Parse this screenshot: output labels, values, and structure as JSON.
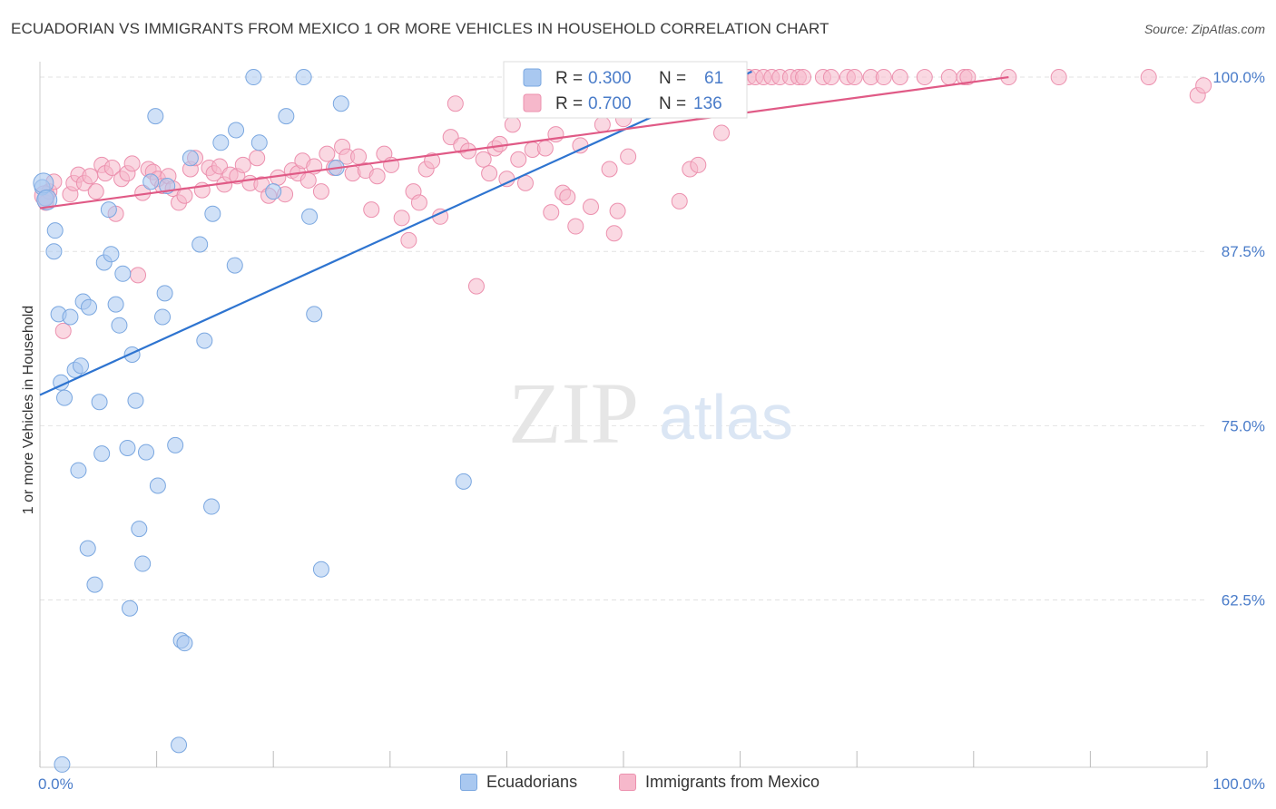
{
  "title": "ECUADORIAN VS IMMIGRANTS FROM MEXICO 1 OR MORE VEHICLES IN HOUSEHOLD CORRELATION CHART",
  "source": "Source: ZipAtlas.com",
  "watermark": {
    "zip": "ZIP",
    "atlas": "atlas"
  },
  "colors": {
    "blue_fill": "#a9c8f0",
    "blue_stroke": "#7aa7e0",
    "blue_line": "#2e74d0",
    "pink_fill": "#f6b8cb",
    "pink_stroke": "#ec90ae",
    "pink_line": "#e05a86",
    "tick_label": "#4a7cc9",
    "grid": "#e2e2e2"
  },
  "chart_data": {
    "type": "scatter",
    "xlabel": "",
    "ylabel": "1 or more Vehicles in Household",
    "xlim": [
      0,
      100
    ],
    "ylim": [
      50.5,
      101.5
    ],
    "x_tick_labels": {
      "left": "0.0%",
      "right": "100.0%"
    },
    "y_ticks": [
      {
        "value": 100.0,
        "label": "100.0%"
      },
      {
        "value": 87.5,
        "label": "87.5%"
      },
      {
        "value": 75.0,
        "label": "75.0%"
      },
      {
        "value": 62.5,
        "label": "62.5%"
      }
    ],
    "legend_stats": [
      {
        "r_label": "R =",
        "r_value": "0.300",
        "n_label": "N =",
        "n_value": "61"
      },
      {
        "r_label": "R =",
        "r_value": "0.700",
        "n_label": "N =",
        "n_value": "136"
      }
    ],
    "series": [
      {
        "name": "Ecuadorians",
        "trend": [
          [
            0,
            77.2
          ],
          [
            61,
            100.4
          ]
        ],
        "points": [
          [
            0.2,
            92.1
          ],
          [
            0.5,
            91.3
          ],
          [
            1.2,
            87.5
          ],
          [
            1.3,
            89.0
          ],
          [
            1.6,
            83.0
          ],
          [
            1.8,
            78.1
          ],
          [
            2.1,
            77.0
          ],
          [
            2.6,
            82.8
          ],
          [
            3.0,
            79.0
          ],
          [
            3.3,
            71.8
          ],
          [
            3.5,
            79.3
          ],
          [
            3.7,
            83.9
          ],
          [
            4.1,
            66.2
          ],
          [
            4.2,
            83.5
          ],
          [
            4.7,
            63.6
          ],
          [
            5.1,
            76.7
          ],
          [
            5.3,
            73.0
          ],
          [
            5.5,
            86.7
          ],
          [
            5.9,
            90.5
          ],
          [
            6.1,
            87.3
          ],
          [
            6.5,
            83.7
          ],
          [
            6.8,
            82.2
          ],
          [
            7.1,
            85.9
          ],
          [
            7.5,
            73.4
          ],
          [
            7.7,
            61.9
          ],
          [
            7.9,
            80.1
          ],
          [
            8.2,
            76.8
          ],
          [
            8.5,
            67.6
          ],
          [
            8.8,
            65.1
          ],
          [
            9.1,
            73.1
          ],
          [
            9.5,
            92.5
          ],
          [
            9.9,
            97.2
          ],
          [
            10.1,
            70.7
          ],
          [
            10.5,
            82.8
          ],
          [
            10.7,
            84.5
          ],
          [
            10.9,
            92.2
          ],
          [
            11.6,
            73.6
          ],
          [
            11.9,
            52.1
          ],
          [
            12.1,
            59.6
          ],
          [
            12.4,
            59.4
          ],
          [
            12.9,
            94.2
          ],
          [
            13.7,
            88.0
          ],
          [
            14.1,
            81.1
          ],
          [
            14.7,
            69.2
          ],
          [
            14.8,
            90.2
          ],
          [
            15.5,
            95.3
          ],
          [
            16.7,
            86.5
          ],
          [
            16.8,
            96.2
          ],
          [
            18.3,
            100.0
          ],
          [
            18.8,
            95.3
          ],
          [
            20.0,
            91.8
          ],
          [
            21.1,
            97.2
          ],
          [
            22.6,
            100.0
          ],
          [
            23.1,
            90.0
          ],
          [
            23.5,
            83.0
          ],
          [
            24.1,
            64.7
          ],
          [
            25.4,
            93.5
          ],
          [
            25.8,
            98.1
          ],
          [
            36.3,
            71.0
          ],
          [
            1.9,
            50.7
          ]
        ],
        "big_points": [
          [
            0.3,
            92.4
          ],
          [
            0.6,
            91.2
          ]
        ]
      },
      {
        "name": "Immigrants from Mexico",
        "trend": [
          [
            0,
            90.6
          ],
          [
            83,
            100.0
          ]
        ],
        "points": [
          [
            0.5,
            91.0
          ],
          [
            0.8,
            91.8
          ],
          [
            1.2,
            92.5
          ],
          [
            2.0,
            81.8
          ],
          [
            2.6,
            91.6
          ],
          [
            2.9,
            92.4
          ],
          [
            3.3,
            93.0
          ],
          [
            3.8,
            92.4
          ],
          [
            4.3,
            92.9
          ],
          [
            4.8,
            91.8
          ],
          [
            5.3,
            93.7
          ],
          [
            5.6,
            93.1
          ],
          [
            6.2,
            93.5
          ],
          [
            6.5,
            90.2
          ],
          [
            7.0,
            92.7
          ],
          [
            7.5,
            93.1
          ],
          [
            7.9,
            93.8
          ],
          [
            8.4,
            85.8
          ],
          [
            8.8,
            91.7
          ],
          [
            9.3,
            93.4
          ],
          [
            9.7,
            93.2
          ],
          [
            10.1,
            92.7
          ],
          [
            10.5,
            92.2
          ],
          [
            11.0,
            92.9
          ],
          [
            11.4,
            92.0
          ],
          [
            11.9,
            91.0
          ],
          [
            12.4,
            91.5
          ],
          [
            12.9,
            93.4
          ],
          [
            13.3,
            94.2
          ],
          [
            13.9,
            91.9
          ],
          [
            14.5,
            93.5
          ],
          [
            14.9,
            93.1
          ],
          [
            15.4,
            93.6
          ],
          [
            15.8,
            92.3
          ],
          [
            16.3,
            93.0
          ],
          [
            16.9,
            92.9
          ],
          [
            17.4,
            93.7
          ],
          [
            18.0,
            92.4
          ],
          [
            18.6,
            94.2
          ],
          [
            19.0,
            92.3
          ],
          [
            19.6,
            91.5
          ],
          [
            20.4,
            92.8
          ],
          [
            21.0,
            91.6
          ],
          [
            21.6,
            93.3
          ],
          [
            22.1,
            93.1
          ],
          [
            22.5,
            94.0
          ],
          [
            23.0,
            92.6
          ],
          [
            23.5,
            93.6
          ],
          [
            24.1,
            91.8
          ],
          [
            24.6,
            94.5
          ],
          [
            25.2,
            93.5
          ],
          [
            25.9,
            95.0
          ],
          [
            26.3,
            94.3
          ],
          [
            26.8,
            93.1
          ],
          [
            27.3,
            94.3
          ],
          [
            27.9,
            93.3
          ],
          [
            28.4,
            90.5
          ],
          [
            28.9,
            92.9
          ],
          [
            29.5,
            94.5
          ],
          [
            30.1,
            93.7
          ],
          [
            31.0,
            89.9
          ],
          [
            31.6,
            88.3
          ],
          [
            32.0,
            91.8
          ],
          [
            32.5,
            91.0
          ],
          [
            33.1,
            93.4
          ],
          [
            33.6,
            94.0
          ],
          [
            34.3,
            90.0
          ],
          [
            35.2,
            95.7
          ],
          [
            35.6,
            98.1
          ],
          [
            36.1,
            95.1
          ],
          [
            36.7,
            94.7
          ],
          [
            37.4,
            85.0
          ],
          [
            38.0,
            94.1
          ],
          [
            38.5,
            93.1
          ],
          [
            39.0,
            94.9
          ],
          [
            39.4,
            95.2
          ],
          [
            40.0,
            92.7
          ],
          [
            40.5,
            96.6
          ],
          [
            41.0,
            94.1
          ],
          [
            41.6,
            92.4
          ],
          [
            42.2,
            94.8
          ],
          [
            43.3,
            94.9
          ],
          [
            43.8,
            90.3
          ],
          [
            44.2,
            95.9
          ],
          [
            44.8,
            91.7
          ],
          [
            45.2,
            91.4
          ],
          [
            45.9,
            89.3
          ],
          [
            46.3,
            95.1
          ],
          [
            47.2,
            90.7
          ],
          [
            48.2,
            96.6
          ],
          [
            48.8,
            93.4
          ],
          [
            49.2,
            88.8
          ],
          [
            49.5,
            90.4
          ],
          [
            50.0,
            97.0
          ],
          [
            50.4,
            94.3
          ],
          [
            50.9,
            100.0
          ],
          [
            51.3,
            98.4
          ],
          [
            52.0,
            99.5
          ],
          [
            53.3,
            100.0
          ],
          [
            54.0,
            98.3
          ],
          [
            54.8,
            91.1
          ],
          [
            55.0,
            100.0
          ],
          [
            55.7,
            93.4
          ],
          [
            56.4,
            93.7
          ],
          [
            56.8,
            100.0
          ],
          [
            57.4,
            100.0
          ],
          [
            58.4,
            96.0
          ],
          [
            59.1,
            100.0
          ],
          [
            60.0,
            100.0
          ],
          [
            60.7,
            100.0
          ],
          [
            61.3,
            100.0
          ],
          [
            62.0,
            100.0
          ],
          [
            62.7,
            100.0
          ],
          [
            63.4,
            100.0
          ],
          [
            64.3,
            100.0
          ],
          [
            65.0,
            100.0
          ],
          [
            65.4,
            100.0
          ],
          [
            67.1,
            100.0
          ],
          [
            67.8,
            100.0
          ],
          [
            69.2,
            100.0
          ],
          [
            69.8,
            100.0
          ],
          [
            71.2,
            100.0
          ],
          [
            72.3,
            100.0
          ],
          [
            73.7,
            100.0
          ],
          [
            75.8,
            100.0
          ],
          [
            77.9,
            100.0
          ],
          [
            79.2,
            100.0
          ],
          [
            79.5,
            100.0
          ],
          [
            83.0,
            100.0
          ],
          [
            87.3,
            100.0
          ],
          [
            95.0,
            100.0
          ],
          [
            99.2,
            98.7
          ],
          [
            99.7,
            99.4
          ]
        ],
        "big_points": [
          [
            0.4,
            91.5
          ]
        ]
      }
    ]
  },
  "legend_bottom": [
    {
      "label": "Ecuadorians"
    },
    {
      "label": "Immigrants from Mexico"
    }
  ]
}
